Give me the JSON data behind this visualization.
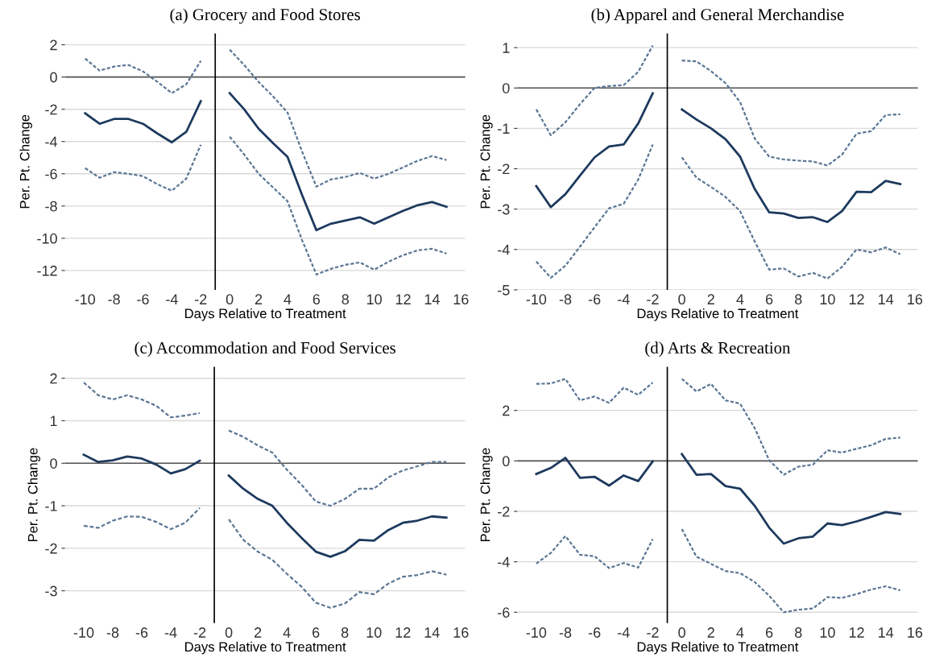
{
  "chart_data": [
    {
      "type": "line",
      "title": "(a) Grocery and Food Stores",
      "xlabel": "Days Relative to Treatment",
      "ylabel": "Per. Pt. Change",
      "grid": "y",
      "x": [
        -10,
        -9,
        -8,
        -7,
        -6,
        -5,
        -4,
        -3,
        -2,
        -1,
        0,
        1,
        2,
        3,
        4,
        5,
        6,
        7,
        8,
        9,
        10,
        11,
        12,
        13,
        14,
        15
      ],
      "xlim": [
        -11.4,
        16.3
      ],
      "xticks": [
        -10,
        -8,
        -6,
        -4,
        -2,
        0,
        2,
        4,
        6,
        8,
        10,
        12,
        14,
        16
      ],
      "ylim": [
        -13.2,
        2.7
      ],
      "yticks": [
        -12,
        -10,
        -8,
        -6,
        -4,
        -2,
        0,
        2
      ],
      "ref_lines": [
        {
          "axis": "y",
          "value": 0,
          "color": "#555555"
        },
        {
          "axis": "x",
          "value": -1,
          "color": "#000000"
        }
      ],
      "series": [
        {
          "color": "#5b7694",
          "line_style": "dashed",
          "values": [
            1.15,
            0.4,
            0.65,
            0.75,
            0.35,
            -0.3,
            -1.0,
            -0.45,
            1.0,
            null,
            1.7,
            0.75,
            -0.3,
            -1.2,
            -2.2,
            -4.6,
            -6.8,
            -6.35,
            -6.2,
            -5.95,
            -6.3,
            -6.0,
            -5.6,
            -5.2,
            -4.9,
            -5.15
          ]
        },
        {
          "color": "#5b7694",
          "line_style": "dashed",
          "values": [
            -5.65,
            -6.25,
            -5.9,
            -6.0,
            -6.15,
            -6.65,
            -7.05,
            -6.3,
            -4.2,
            null,
            -3.7,
            -4.8,
            -6.0,
            -6.85,
            -7.7,
            -10.1,
            -12.25,
            -11.9,
            -11.65,
            -11.5,
            -11.95,
            -11.45,
            -11.05,
            -10.75,
            -10.65,
            -10.95
          ]
        },
        {
          "color": "#1d3a5e",
          "line_style": "solid",
          "values": [
            -2.25,
            -2.9,
            -2.6,
            -2.6,
            -2.9,
            -3.5,
            -4.05,
            -3.4,
            -1.5,
            null,
            -1.0,
            -2.0,
            -3.2,
            -4.1,
            -4.95,
            -7.3,
            -9.5,
            -9.1,
            -8.9,
            -8.7,
            -9.1,
            -8.7,
            -8.3,
            -7.95,
            -7.75,
            -8.05
          ]
        }
      ]
    },
    {
      "type": "line",
      "title": "(b) Apparel and General Merchandise",
      "xlabel": "Days Relative to Treatment",
      "ylabel": "Per. Pt. Change",
      "grid": "y",
      "x": [
        -10,
        -9,
        -8,
        -7,
        -6,
        -5,
        -4,
        -3,
        -2,
        -1,
        0,
        1,
        2,
        3,
        4,
        5,
        6,
        7,
        8,
        9,
        10,
        11,
        12,
        13,
        14,
        15
      ],
      "xlim": [
        -11.3,
        16.2
      ],
      "xticks": [
        -10,
        -8,
        -6,
        -4,
        -2,
        0,
        2,
        4,
        6,
        8,
        10,
        12,
        14,
        16
      ],
      "ylim": [
        -5,
        1.35
      ],
      "yticks": [
        -5,
        -4,
        -3,
        -2,
        -1,
        0,
        1
      ],
      "ref_lines": [
        {
          "axis": "y",
          "value": 0,
          "color": "#555555"
        },
        {
          "axis": "x",
          "value": -1,
          "color": "#000000"
        }
      ],
      "series": [
        {
          "color": "#5b7694",
          "line_style": "dashed",
          "values": [
            -0.53,
            -1.17,
            -0.85,
            -0.4,
            0.0,
            0.05,
            0.07,
            0.4,
            1.05,
            null,
            0.68,
            0.66,
            0.42,
            0.12,
            -0.35,
            -1.25,
            -1.7,
            -1.77,
            -1.8,
            -1.82,
            -1.92,
            -1.65,
            -1.13,
            -1.07,
            -0.67,
            -0.65
          ]
        },
        {
          "color": "#5b7694",
          "line_style": "dashed",
          "values": [
            -4.3,
            -4.7,
            -4.4,
            -3.93,
            -3.45,
            -2.98,
            -2.87,
            -2.27,
            -1.4,
            null,
            -1.72,
            -2.22,
            -2.45,
            -2.7,
            -3.05,
            -3.8,
            -4.5,
            -4.47,
            -4.67,
            -4.58,
            -4.72,
            -4.43,
            -4.0,
            -4.07,
            -3.95,
            -4.12
          ]
        },
        {
          "color": "#1d3a5e",
          "line_style": "solid",
          "values": [
            -2.43,
            -2.95,
            -2.63,
            -2.17,
            -1.72,
            -1.45,
            -1.4,
            -0.88,
            -0.13,
            null,
            -0.53,
            -0.78,
            -1.0,
            -1.27,
            -1.7,
            -2.5,
            -3.08,
            -3.11,
            -3.22,
            -3.2,
            -3.32,
            -3.05,
            -2.57,
            -2.58,
            -2.3,
            -2.38
          ]
        }
      ]
    },
    {
      "type": "line",
      "title": "(c) Accommodation and Food Services",
      "xlabel": "Days Relative to Treatment",
      "ylabel": "Per. Pt. Change",
      "grid": "y",
      "x": [
        -10,
        -9,
        -8,
        -7,
        -6,
        -5,
        -4,
        -3,
        -2,
        -1,
        0,
        1,
        2,
        3,
        4,
        5,
        6,
        7,
        8,
        9,
        10,
        11,
        12,
        13,
        14,
        15
      ],
      "xlim": [
        -11.3,
        16.3
      ],
      "xticks": [
        -10,
        -8,
        -6,
        -4,
        -2,
        0,
        2,
        4,
        6,
        8,
        10,
        12,
        14,
        16
      ],
      "ylim": [
        -3.76,
        2.27
      ],
      "yticks": [
        -3,
        -2,
        -1,
        0,
        1,
        2
      ],
      "ref_lines": [
        {
          "axis": "y",
          "value": 0,
          "color": "#555555"
        },
        {
          "axis": "x",
          "value": -1,
          "color": "#000000"
        }
      ],
      "series": [
        {
          "color": "#5b7694",
          "line_style": "dashed",
          "values": [
            1.9,
            1.6,
            1.5,
            1.6,
            1.5,
            1.35,
            1.08,
            1.12,
            1.18,
            null,
            0.77,
            0.62,
            0.42,
            0.25,
            -0.15,
            -0.5,
            -0.9,
            -1.0,
            -0.84,
            -0.6,
            -0.6,
            -0.33,
            -0.17,
            -0.07,
            0.03,
            0.03
          ]
        },
        {
          "color": "#5b7694",
          "line_style": "dashed",
          "values": [
            -1.47,
            -1.52,
            -1.35,
            -1.25,
            -1.26,
            -1.38,
            -1.55,
            -1.4,
            -1.05,
            null,
            -1.32,
            -1.8,
            -2.08,
            -2.27,
            -2.6,
            -2.9,
            -3.28,
            -3.4,
            -3.3,
            -3.03,
            -3.08,
            -2.83,
            -2.67,
            -2.63,
            -2.54,
            -2.62
          ]
        },
        {
          "color": "#1d3a5e",
          "line_style": "solid",
          "values": [
            0.2,
            0.03,
            0.07,
            0.16,
            0.11,
            -0.03,
            -0.24,
            -0.14,
            0.06,
            null,
            -0.29,
            -0.6,
            -0.84,
            -1.0,
            -1.4,
            -1.75,
            -2.08,
            -2.2,
            -2.07,
            -1.8,
            -1.82,
            -1.57,
            -1.4,
            -1.35,
            -1.25,
            -1.28
          ]
        }
      ]
    },
    {
      "type": "line",
      "title": "(d) Arts & Recreation",
      "xlabel": "Days Relative to Treatment",
      "ylabel": "Per. Pt. Change",
      "grid": "y",
      "x": [
        -10,
        -9,
        -8,
        -7,
        -6,
        -5,
        -4,
        -3,
        -2,
        -1,
        0,
        1,
        2,
        3,
        4,
        5,
        6,
        7,
        8,
        9,
        10,
        11,
        12,
        13,
        14,
        15
      ],
      "xlim": [
        -11.3,
        16.2
      ],
      "xticks": [
        -10,
        -8,
        -6,
        -4,
        -2,
        0,
        2,
        4,
        6,
        8,
        10,
        12,
        14,
        16
      ],
      "ylim": [
        -6.43,
        3.73
      ],
      "yticks": [
        -6,
        -4,
        -2,
        0,
        2
      ],
      "ref_lines": [
        {
          "axis": "y",
          "value": 0,
          "color": "#555555"
        },
        {
          "axis": "x",
          "value": -1,
          "color": "#000000"
        }
      ],
      "series": [
        {
          "color": "#5b7694",
          "line_style": "dashed",
          "values": [
            3.05,
            3.07,
            3.25,
            2.4,
            2.55,
            2.3,
            2.9,
            2.62,
            3.1,
            null,
            3.25,
            2.75,
            3.05,
            2.4,
            2.27,
            1.3,
            0.02,
            -0.55,
            -0.23,
            -0.15,
            0.42,
            0.33,
            0.48,
            0.62,
            0.87,
            0.92
          ]
        },
        {
          "color": "#5b7694",
          "line_style": "dashed",
          "values": [
            -4.07,
            -3.65,
            -2.98,
            -3.72,
            -3.78,
            -4.25,
            -4.05,
            -4.23,
            -3.1,
            null,
            -2.7,
            -3.8,
            -4.08,
            -4.37,
            -4.45,
            -4.8,
            -5.35,
            -6.0,
            -5.9,
            -5.85,
            -5.4,
            -5.43,
            -5.28,
            -5.1,
            -4.97,
            -5.13
          ]
        },
        {
          "color": "#1d3a5e",
          "line_style": "solid",
          "values": [
            -0.52,
            -0.28,
            0.12,
            -0.67,
            -0.63,
            -0.98,
            -0.58,
            -0.8,
            -0.02,
            null,
            0.27,
            -0.55,
            -0.52,
            -1.0,
            -1.1,
            -1.78,
            -2.65,
            -3.28,
            -3.07,
            -3.0,
            -2.48,
            -2.55,
            -2.4,
            -2.22,
            -2.03,
            -2.1
          ]
        }
      ]
    }
  ]
}
